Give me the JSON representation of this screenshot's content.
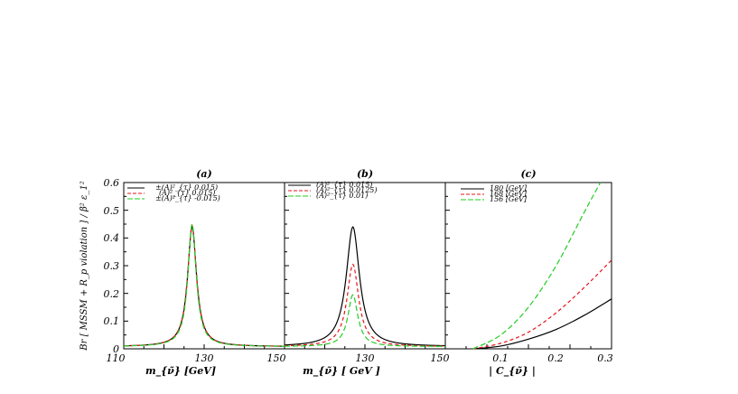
{
  "chart_data": [
    {
      "type": "line",
      "title": "(a)",
      "xlabel": "m_{ν̃} [GeV]",
      "ylabel": "Br [ MSSM + R_p violation ] / β² ε_1²",
      "xlim": [
        110,
        150
      ],
      "ylim": [
        0,
        0.6
      ],
      "x_tick_labels": [
        "110",
        "130",
        "150"
      ],
      "y_tick_labels": [
        "0",
        "0.1",
        "0.2",
        "0.3",
        "0.4",
        "0.5",
        "0.6"
      ],
      "legend_position": "top-left",
      "series": [
        {
          "name": "±(A)²_{τ} 0.015)",
          "color": "#000000",
          "dash": "solid",
          "peak_x": 127,
          "peak_y": 0.44,
          "half_width": 1.35
        },
        {
          "name": "(A)²_{τ} 0.015)",
          "color": "#e8141c",
          "dash": "dashed",
          "peak_x": 127,
          "peak_y": 0.445,
          "half_width": 1.35
        },
        {
          "name": "±(A)²_{τ} -0.015)",
          "color": "#22cc22",
          "dash": "dashed",
          "peak_x": 127,
          "peak_y": 0.45,
          "half_width": 1.25
        }
      ]
    },
    {
      "type": "line",
      "title": "(b)",
      "xlabel": "m_{ν̃} [ GeV ]",
      "xlim": [
        110,
        150
      ],
      "ylim": [
        0,
        0.6
      ],
      "x_tick_labels": [
        "130",
        "150"
      ],
      "legend_position": "top-left",
      "series": [
        {
          "name": "(A)²_{τ} 0.015)",
          "color": "#000000",
          "dash": "solid",
          "peak_x": 127,
          "peak_y": 0.44,
          "half_width": 2.0
        },
        {
          "name": "(A)²_{τ} 0.0125)",
          "color": "#e8141c",
          "dash": "dashed",
          "peak_x": 127,
          "peak_y": 0.305,
          "half_width": 1.75
        },
        {
          "name": "(A)²_{τ} 0.01)",
          "color": "#22cc22",
          "dash": "dashed",
          "peak_x": 127,
          "peak_y": 0.195,
          "half_width": 1.5
        }
      ]
    },
    {
      "type": "line",
      "title": "(c)",
      "xlabel": "| C_{ν̃} |",
      "xlim": [
        0.0,
        0.3
      ],
      "ylim": [
        0,
        0.6
      ],
      "x_tick_labels": [
        "0.1",
        "0.2",
        "0.3"
      ],
      "legend_position": "top-left",
      "series": [
        {
          "name": "180 [GeV]",
          "color": "#000000",
          "dash": "solid",
          "x": [
            0.05,
            0.1,
            0.15,
            0.2,
            0.25,
            0.3
          ],
          "y": [
            0.0,
            0.01,
            0.035,
            0.07,
            0.12,
            0.18
          ]
        },
        {
          "name": "168 [GeV]",
          "color": "#e8141c",
          "dash": "dashed",
          "x": [
            0.05,
            0.1,
            0.15,
            0.2,
            0.25,
            0.3
          ],
          "y": [
            0.0,
            0.02,
            0.06,
            0.13,
            0.22,
            0.32
          ]
        },
        {
          "name": "156 [GeV]",
          "color": "#22cc22",
          "dash": "dashed",
          "x": [
            0.05,
            0.1,
            0.15,
            0.2,
            0.25,
            0.28
          ],
          "y": [
            0.0,
            0.05,
            0.15,
            0.3,
            0.49,
            0.62
          ]
        }
      ]
    }
  ]
}
